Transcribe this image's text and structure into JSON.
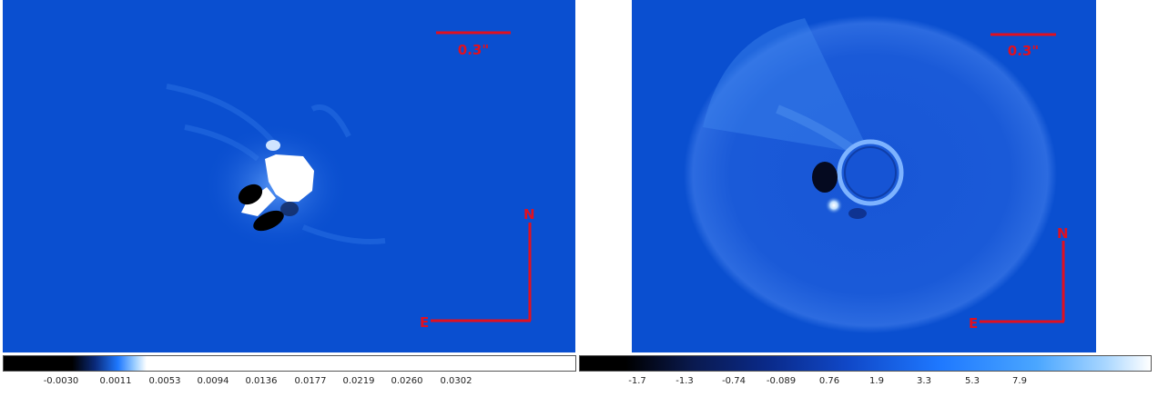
{
  "left_panel": {
    "scale_bar_label": "0.3\"",
    "compass": {
      "north": "N",
      "east": "E"
    },
    "colorbar_ticks": [
      "-0.0030",
      "0.0011",
      "0.0053",
      "0.0094",
      "0.0136",
      "0.0177",
      "0.0219",
      "0.0260",
      "0.0302"
    ]
  },
  "right_panel": {
    "scale_bar_label": "0.3\"",
    "compass": {
      "north": "N",
      "east": "E"
    },
    "colorbar_ticks": [
      "-1.7",
      "-1.3",
      "-0.74",
      "-0.089",
      "0.76",
      "1.9",
      "3.3",
      "5.3",
      "7.9"
    ]
  },
  "colors": {
    "background_blue": "#0a4fd0",
    "annotation_red": "#e01020"
  }
}
